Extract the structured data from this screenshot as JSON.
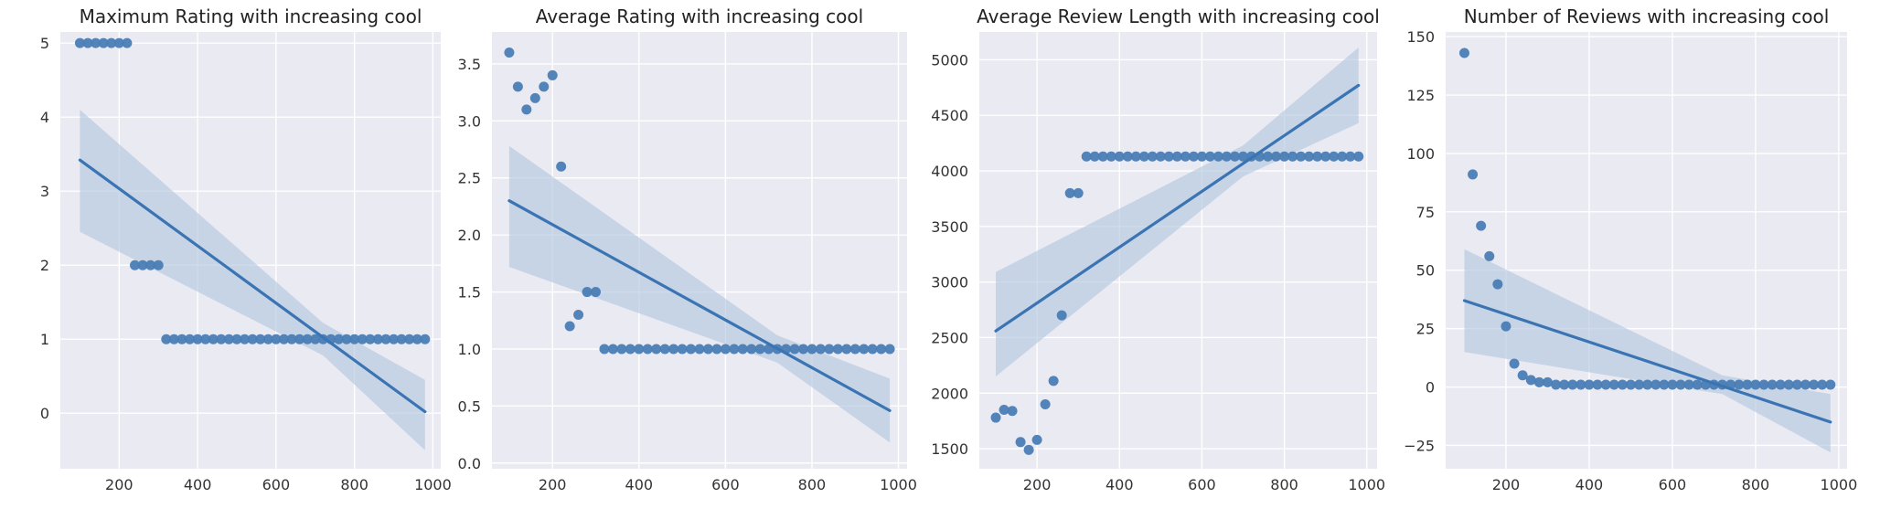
{
  "chart_data": [
    {
      "type": "scatter",
      "title": "Maximum Rating with increasing cool",
      "xlabel": "",
      "ylabel": "",
      "xlim": [
        50,
        1020
      ],
      "ylim": [
        -0.75,
        5.15
      ],
      "xticks": [
        200,
        400,
        600,
        800,
        1000
      ],
      "yticks": [
        0,
        1,
        2,
        3,
        4,
        5
      ],
      "ytick_labels": [
        "0",
        "1",
        "2",
        "3",
        "4",
        "5"
      ],
      "grid": true,
      "x": [
        100,
        120,
        140,
        160,
        180,
        200,
        220,
        240,
        260,
        280,
        300,
        320,
        340,
        360,
        380,
        400,
        420,
        440,
        460,
        480,
        500,
        520,
        540,
        560,
        580,
        600,
        620,
        640,
        660,
        680,
        700,
        720,
        740,
        760,
        780,
        800,
        820,
        840,
        860,
        880,
        900,
        920,
        940,
        960,
        980
      ],
      "y": [
        5,
        5,
        5,
        5,
        5,
        5,
        5,
        2,
        2,
        2,
        2,
        1,
        1,
        1,
        1,
        1,
        1,
        1,
        1,
        1,
        1,
        1,
        1,
        1,
        1,
        1,
        1,
        1,
        1,
        1,
        1,
        1,
        1,
        1,
        1,
        1,
        1,
        1,
        1,
        1,
        1,
        1,
        1,
        1,
        1
      ],
      "regression": {
        "x": [
          100,
          980
        ],
        "y": [
          3.42,
          0.02
        ]
      },
      "ci_band": {
        "x": [
          100,
          720,
          980
        ],
        "lower": [
          2.45,
          0.78,
          -0.5
        ],
        "upper": [
          4.1,
          1.22,
          0.45
        ]
      },
      "colors": {
        "point": "#4a7db5",
        "line": "#3a74b3",
        "band": "#b4c8de",
        "background": "#eaeaf2",
        "grid": "#ffffff"
      }
    },
    {
      "type": "scatter",
      "title": "Average Rating with increasing cool",
      "xlabel": "",
      "ylabel": "",
      "xlim": [
        60,
        1020
      ],
      "ylim": [
        -0.05,
        3.78
      ],
      "xticks": [
        200,
        400,
        600,
        800,
        1000
      ],
      "yticks": [
        0,
        0.5,
        1,
        1.5,
        2,
        2.5,
        3,
        3.5
      ],
      "ytick_labels": [
        "0.0",
        "0.5",
        "1.0",
        "1.5",
        "2.0",
        "2.5",
        "3.0",
        "3.5"
      ],
      "grid": true,
      "x": [
        100,
        120,
        140,
        160,
        180,
        200,
        220,
        240,
        260,
        280,
        300,
        320,
        340,
        360,
        380,
        400,
        420,
        440,
        460,
        480,
        500,
        520,
        540,
        560,
        580,
        600,
        620,
        640,
        660,
        680,
        700,
        720,
        740,
        760,
        780,
        800,
        820,
        840,
        860,
        880,
        900,
        920,
        940,
        960,
        980
      ],
      "y": [
        3.6,
        3.3,
        3.1,
        3.2,
        3.3,
        3.4,
        2.6,
        1.2,
        1.3,
        1.5,
        1.5,
        1,
        1,
        1,
        1,
        1,
        1,
        1,
        1,
        1,
        1,
        1,
        1,
        1,
        1,
        1,
        1,
        1,
        1,
        1,
        1,
        1,
        1,
        1,
        1,
        1,
        1,
        1,
        1,
        1,
        1,
        1,
        1,
        1,
        1
      ],
      "regression": {
        "x": [
          100,
          980
        ],
        "y": [
          2.3,
          0.46
        ]
      },
      "ci_band": {
        "x": [
          100,
          720,
          980
        ],
        "lower": [
          1.72,
          0.88,
          0.18
        ],
        "upper": [
          2.78,
          1.12,
          0.74
        ]
      },
      "colors": {
        "point": "#4a7db5",
        "line": "#3a74b3",
        "band": "#b4c8de",
        "background": "#eaeaf2",
        "grid": "#ffffff"
      }
    },
    {
      "type": "scatter",
      "title": "Average Review Length with increasing cool",
      "xlabel": "",
      "ylabel": "",
      "xlim": [
        60,
        1025
      ],
      "ylim": [
        1320,
        5250
      ],
      "xticks": [
        200,
        400,
        600,
        800,
        1000
      ],
      "yticks": [
        1500,
        2000,
        2500,
        3000,
        3500,
        4000,
        4500,
        5000
      ],
      "ytick_labels": [
        "1500",
        "2000",
        "2500",
        "3000",
        "3500",
        "4000",
        "4500",
        "5000"
      ],
      "grid": true,
      "x": [
        100,
        120,
        140,
        160,
        180,
        200,
        220,
        240,
        260,
        280,
        300,
        320,
        340,
        360,
        380,
        400,
        420,
        440,
        460,
        480,
        500,
        520,
        540,
        560,
        580,
        600,
        620,
        640,
        660,
        680,
        700,
        720,
        740,
        760,
        780,
        800,
        820,
        840,
        860,
        880,
        900,
        920,
        940,
        960,
        980
      ],
      "y": [
        1780,
        1850,
        1840,
        1560,
        1490,
        1580,
        1900,
        2110,
        2700,
        3800,
        3800,
        4130,
        4130,
        4130,
        4130,
        4130,
        4130,
        4130,
        4130,
        4130,
        4130,
        4130,
        4130,
        4130,
        4130,
        4130,
        4130,
        4130,
        4130,
        4130,
        4130,
        4130,
        4130,
        4130,
        4130,
        4130,
        4130,
        4130,
        4130,
        4130,
        4130,
        4130,
        4130,
        4130,
        4130
      ],
      "regression": {
        "x": [
          100,
          980
        ],
        "y": [
          2560,
          4770
        ]
      },
      "ci_band": {
        "x": [
          100,
          700,
          980
        ],
        "lower": [
          2150,
          3950,
          4430
        ],
        "upper": [
          3090,
          4230,
          5110
        ]
      },
      "colors": {
        "point": "#4a7db5",
        "line": "#3a74b3",
        "band": "#b4c8de",
        "background": "#eaeaf2",
        "grid": "#ffffff"
      }
    },
    {
      "type": "scatter",
      "title": "Number of Reviews with increasing cool",
      "xlabel": "",
      "ylabel": "",
      "xlim": [
        55,
        1020
      ],
      "ylim": [
        -35,
        152
      ],
      "xticks": [
        200,
        400,
        600,
        800,
        1000
      ],
      "yticks": [
        -25,
        0,
        25,
        50,
        75,
        100,
        125,
        150
      ],
      "ytick_labels": [
        "−25",
        "0",
        "25",
        "50",
        "75",
        "100",
        "125",
        "150"
      ],
      "grid": true,
      "x": [
        100,
        120,
        140,
        160,
        180,
        200,
        220,
        240,
        260,
        280,
        300,
        320,
        340,
        360,
        380,
        400,
        420,
        440,
        460,
        480,
        500,
        520,
        540,
        560,
        580,
        600,
        620,
        640,
        660,
        680,
        700,
        720,
        740,
        760,
        780,
        800,
        820,
        840,
        860,
        880,
        900,
        920,
        940,
        960,
        980
      ],
      "y": [
        143,
        91,
        69,
        56,
        44,
        26,
        10,
        5,
        3,
        2,
        2,
        1,
        1,
        1,
        1,
        1,
        1,
        1,
        1,
        1,
        1,
        1,
        1,
        1,
        1,
        1,
        1,
        1,
        1,
        1,
        1,
        1,
        1,
        1,
        1,
        1,
        1,
        1,
        1,
        1,
        1,
        1,
        1,
        1,
        1
      ],
      "regression": {
        "x": [
          100,
          980
        ],
        "y": [
          37,
          -15
        ]
      },
      "ci_band": {
        "x": [
          100,
          720,
          980
        ],
        "lower": [
          15,
          -3,
          -28
        ],
        "upper": [
          59,
          5,
          -3
        ]
      },
      "colors": {
        "point": "#4a7db5",
        "line": "#3a74b3",
        "band": "#b4c8de",
        "background": "#eaeaf2",
        "grid": "#ffffff"
      }
    }
  ]
}
